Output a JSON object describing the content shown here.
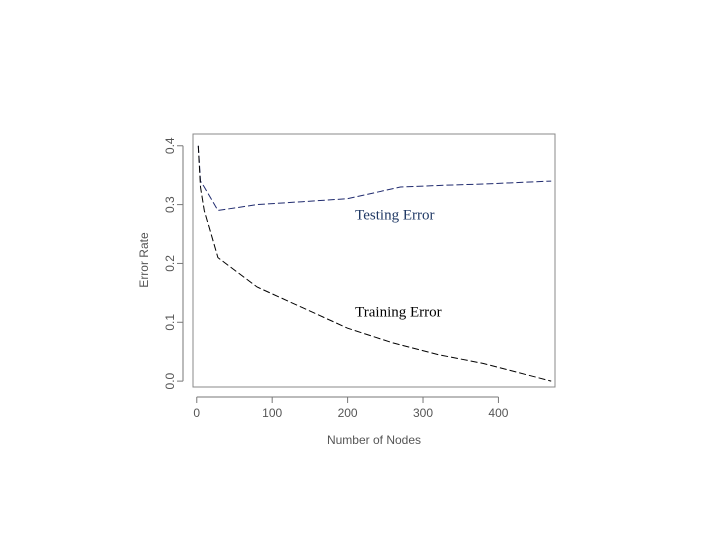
{
  "chart_data": {
    "type": "line",
    "title": "",
    "xlabel": "Number of Nodes",
    "ylabel": "Error Rate",
    "xlim": [
      -5,
      475
    ],
    "ylim": [
      -0.01,
      0.42
    ],
    "x_ticks": [
      0,
      100,
      200,
      300,
      400
    ],
    "x_tick_labels": [
      "0",
      "100",
      "200",
      "300",
      "400"
    ],
    "y_ticks": [
      0.0,
      0.1,
      0.2,
      0.3,
      0.4
    ],
    "y_tick_labels": [
      "0.0",
      "0.1",
      "0.2",
      "0.3",
      "0.4"
    ],
    "grid": false,
    "series": [
      {
        "name": "Testing Error",
        "color": "#1f2a6e",
        "line_style": "dashed",
        "x": [
          2,
          5,
          10,
          28,
          80,
          140,
          200,
          270,
          330,
          380,
          470
        ],
        "y": [
          0.4,
          0.34,
          0.33,
          0.29,
          0.3,
          0.305,
          0.31,
          0.33,
          0.333,
          0.335,
          0.34
        ]
      },
      {
        "name": "Training Error",
        "color": "#000000",
        "line_style": "dashed",
        "x": [
          2,
          5,
          10,
          28,
          80,
          140,
          200,
          260,
          320,
          380,
          470
        ],
        "y": [
          0.4,
          0.33,
          0.29,
          0.21,
          0.16,
          0.125,
          0.09,
          0.065,
          0.045,
          0.03,
          0.0
        ]
      }
    ],
    "annotations": [
      {
        "text": "Testing Error",
        "x": 210,
        "y": 0.275,
        "color": "#1f3864"
      },
      {
        "text": "Training Error",
        "x": 210,
        "y": 0.11,
        "color": "#000000"
      }
    ]
  }
}
